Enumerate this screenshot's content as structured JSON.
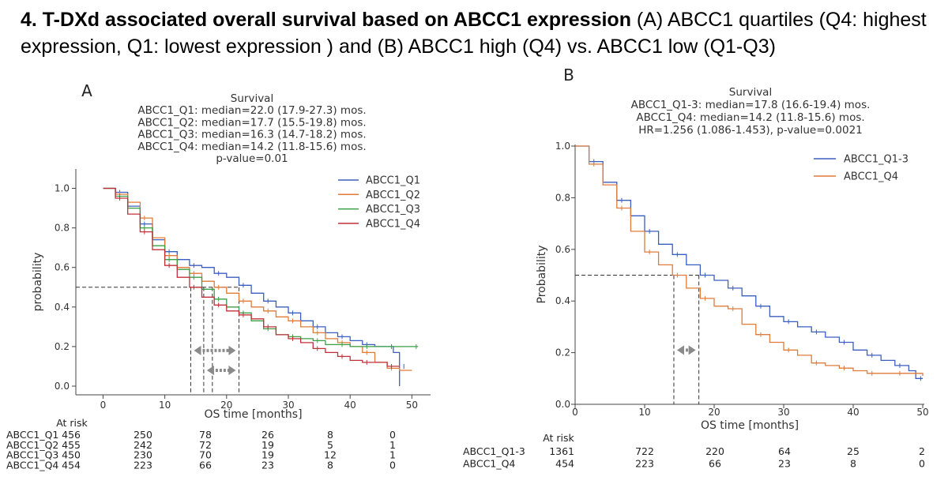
{
  "header": {
    "bold": "4. T-DXd associated overall survival based on ABCC1 expression",
    "rest": " (A) ABCC1 quartiles (Q4: highest expression, Q1: lowest expression ) and (B) ABCC1 high (Q4) vs. ABCC1 low (Q1-Q3)"
  },
  "chart_data": [
    {
      "panel": "A",
      "type": "line",
      "subtype": "kaplan-meier",
      "annotation_lines": [
        "Survival",
        "ABCC1_Q1: median=22.0 (17.9-27.3) mos.",
        "ABCC1_Q2: median=17.7 (15.5-19.8) mos.",
        "ABCC1_Q3: median=16.3 (14.7-18.2) mos.",
        "ABCC1_Q4: median=14.2 (11.8-15.6) mos.",
        "p-value=0.01"
      ],
      "xlabel": "OS time [months]",
      "ylabel": "probability",
      "xlim": [
        -3,
        52
      ],
      "ylim": [
        -0.02,
        1.05
      ],
      "xticks": [
        0,
        10,
        20,
        30,
        40,
        50
      ],
      "yticks": [
        0.0,
        0.2,
        0.4,
        0.6,
        0.8,
        1.0
      ],
      "legend_position": "top-right",
      "median_lines": [
        14.2,
        16.3,
        17.7,
        22.0
      ],
      "arrows": [
        {
          "y": 0.18,
          "x1": 14.2,
          "x2": 22.0
        },
        {
          "y": 0.08,
          "x1": 16.3,
          "x2": 22.0
        }
      ],
      "series": [
        {
          "name": "ABCC1_Q1",
          "color": "#3b5fc0",
          "x": [
            0,
            2,
            4,
            6,
            8,
            10,
            12,
            14,
            16,
            18,
            20,
            22,
            24,
            26,
            28,
            30,
            32,
            34,
            36,
            38,
            40,
            42,
            44,
            46,
            47,
            48,
            48
          ],
          "y": [
            1.0,
            0.98,
            0.91,
            0.82,
            0.74,
            0.68,
            0.64,
            0.61,
            0.6,
            0.57,
            0.55,
            0.51,
            0.47,
            0.43,
            0.4,
            0.37,
            0.33,
            0.3,
            0.27,
            0.25,
            0.23,
            0.21,
            0.2,
            0.2,
            0.17,
            0.1,
            0.0
          ]
        },
        {
          "name": "ABCC1_Q2",
          "color": "#e07b39",
          "x": [
            0,
            2,
            4,
            6,
            8,
            10,
            12,
            14,
            16,
            18,
            20,
            22,
            24,
            26,
            28,
            30,
            32,
            34,
            36,
            38,
            40,
            42,
            44,
            46,
            48,
            50
          ],
          "y": [
            1.0,
            0.97,
            0.93,
            0.85,
            0.75,
            0.66,
            0.6,
            0.57,
            0.53,
            0.5,
            0.47,
            0.43,
            0.4,
            0.38,
            0.35,
            0.33,
            0.3,
            0.27,
            0.24,
            0.22,
            0.2,
            0.17,
            0.12,
            0.09,
            0.08,
            0.08
          ]
        },
        {
          "name": "ABCC1_Q3",
          "color": "#3aa147",
          "x": [
            0,
            2,
            4,
            6,
            8,
            10,
            12,
            14,
            16,
            18,
            20,
            22,
            24,
            26,
            28,
            30,
            32,
            34,
            36,
            38,
            40,
            42,
            44,
            46,
            48,
            50,
            51
          ],
          "y": [
            1.0,
            0.96,
            0.9,
            0.8,
            0.71,
            0.64,
            0.59,
            0.55,
            0.49,
            0.44,
            0.4,
            0.37,
            0.33,
            0.29,
            0.26,
            0.25,
            0.24,
            0.23,
            0.21,
            0.21,
            0.2,
            0.2,
            0.2,
            0.2,
            0.2,
            0.2,
            0.2
          ]
        },
        {
          "name": "ABCC1_Q4",
          "color": "#c0303a",
          "x": [
            0,
            2,
            4,
            6,
            8,
            10,
            12,
            14,
            16,
            18,
            20,
            22,
            24,
            26,
            28,
            30,
            32,
            34,
            36,
            38,
            40,
            42,
            44,
            46,
            48
          ],
          "y": [
            1.0,
            0.95,
            0.87,
            0.78,
            0.69,
            0.61,
            0.55,
            0.5,
            0.45,
            0.41,
            0.38,
            0.36,
            0.34,
            0.3,
            0.26,
            0.24,
            0.22,
            0.19,
            0.17,
            0.15,
            0.13,
            0.12,
            0.12,
            0.1,
            0.1
          ]
        }
      ],
      "at_risk": {
        "title": "At risk",
        "times": [
          0,
          10,
          20,
          30,
          40,
          50
        ],
        "rows": [
          {
            "label": "ABCC1_Q1",
            "values": [
              456,
              250,
              78,
              26,
              8,
              0
            ]
          },
          {
            "label": "ABCC1_Q2",
            "values": [
              455,
              242,
              72,
              19,
              5,
              1
            ]
          },
          {
            "label": "ABCC1_Q3",
            "values": [
              450,
              230,
              70,
              19,
              12,
              1
            ]
          },
          {
            "label": "ABCC1_Q4",
            "values": [
              454,
              223,
              66,
              23,
              8,
              0
            ]
          }
        ]
      }
    },
    {
      "panel": "B",
      "type": "line",
      "subtype": "kaplan-meier",
      "annotation_lines": [
        "Survival",
        "ABCC1_Q1-3: median=17.8 (16.6-19.4) mos.",
        "ABCC1_Q4: median=14.2 (11.8-15.6) mos.",
        "HR=1.256 (1.086-1.453), p-value=0.0021"
      ],
      "xlabel": "OS time [months]",
      "ylabel": "Probability",
      "xlim": [
        0,
        50
      ],
      "ylim": [
        0.0,
        1.0
      ],
      "xticks": [
        0,
        10,
        20,
        30,
        40,
        50
      ],
      "yticks": [
        0.0,
        0.2,
        0.4,
        0.6,
        0.8,
        1.0
      ],
      "legend_position": "top-right",
      "median_lines": [
        14.2,
        17.8
      ],
      "arrows": [
        {
          "y": 0.21,
          "x1": 14.2,
          "x2": 17.8
        }
      ],
      "series": [
        {
          "name": "ABCC1_Q1-3",
          "color": "#3b5fc0",
          "x": [
            0,
            2,
            4,
            6,
            8,
            10,
            12,
            14,
            16,
            18,
            20,
            22,
            24,
            26,
            28,
            30,
            32,
            34,
            36,
            38,
            40,
            42,
            44,
            46,
            48,
            49,
            50
          ],
          "y": [
            1.0,
            0.94,
            0.86,
            0.79,
            0.73,
            0.67,
            0.62,
            0.58,
            0.54,
            0.5,
            0.48,
            0.45,
            0.42,
            0.38,
            0.34,
            0.32,
            0.3,
            0.28,
            0.26,
            0.24,
            0.21,
            0.19,
            0.17,
            0.15,
            0.13,
            0.1,
            0.1
          ]
        },
        {
          "name": "ABCC1_Q4",
          "color": "#e07b39",
          "x": [
            0,
            2,
            4,
            6,
            8,
            10,
            12,
            14,
            16,
            18,
            20,
            22,
            24,
            26,
            28,
            30,
            32,
            34,
            36,
            38,
            40,
            42,
            44,
            46,
            48,
            50
          ],
          "y": [
            1.0,
            0.93,
            0.85,
            0.76,
            0.67,
            0.59,
            0.54,
            0.5,
            0.45,
            0.41,
            0.38,
            0.37,
            0.31,
            0.27,
            0.24,
            0.21,
            0.19,
            0.16,
            0.15,
            0.14,
            0.13,
            0.12,
            0.12,
            0.12,
            0.12,
            0.11
          ]
        }
      ],
      "at_risk": {
        "title": "At risk",
        "times": [
          0,
          10,
          20,
          30,
          40,
          50
        ],
        "rows": [
          {
            "label": "ABCC1_Q1-3",
            "values": [
              1361,
              722,
              220,
              64,
              25,
              2
            ]
          },
          {
            "label": "ABCC1_Q4",
            "values": [
              454,
              223,
              66,
              23,
              8,
              0
            ]
          }
        ]
      }
    }
  ]
}
